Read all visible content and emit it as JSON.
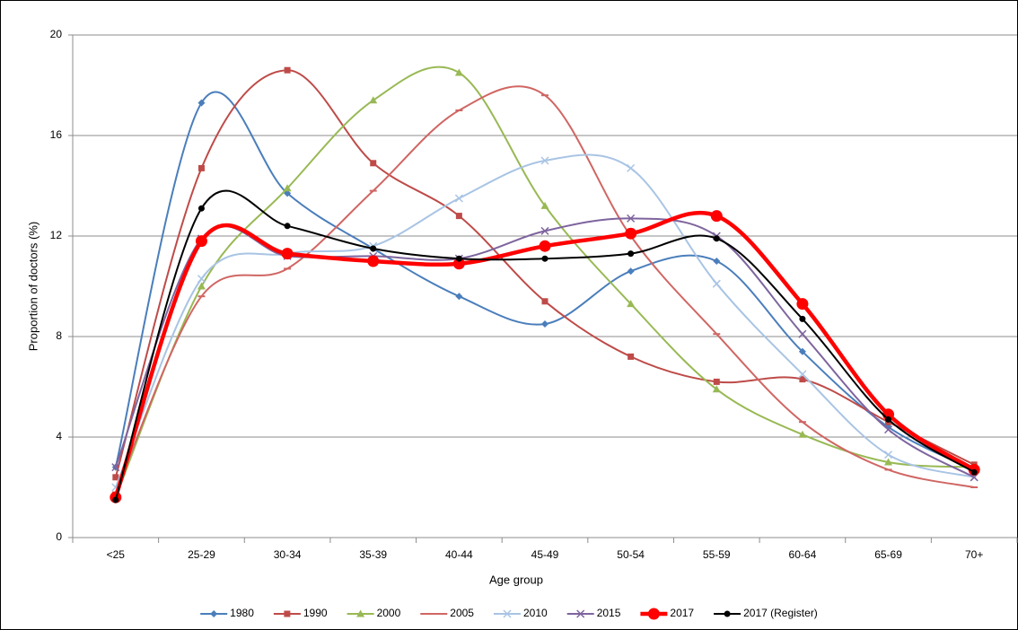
{
  "chart_data": {
    "type": "line",
    "x_label": "Age group",
    "y_label": "Proportion of doctors (%)",
    "categories": [
      "<25",
      "25-29",
      "30-34",
      "35-39",
      "40-44",
      "45-49",
      "50-54",
      "55-59",
      "60-64",
      "65-69",
      "70+"
    ],
    "ylim": [
      0,
      20
    ],
    "yticks": [
      0,
      4,
      8,
      12,
      16,
      20
    ],
    "grid": true,
    "smooth": true,
    "legend": "bottom",
    "series": [
      {
        "name": "1980",
        "color": "#4a7ebb",
        "marker": "diamond",
        "width": 2,
        "values": [
          2.8,
          17.3,
          13.7,
          11.5,
          9.6,
          8.5,
          10.6,
          11.0,
          7.4,
          4.4,
          2.7
        ]
      },
      {
        "name": "1990",
        "color": "#be4b48",
        "marker": "square",
        "width": 2,
        "values": [
          2.4,
          14.7,
          18.6,
          14.9,
          12.8,
          9.4,
          7.2,
          6.2,
          6.3,
          4.6,
          2.9
        ]
      },
      {
        "name": "2000",
        "color": "#98b954",
        "marker": "triangle",
        "width": 2,
        "values": [
          1.6,
          10.0,
          13.9,
          17.4,
          18.5,
          13.2,
          9.3,
          5.9,
          4.1,
          3.0,
          2.8
        ]
      },
      {
        "name": "2005",
        "color": "#d06663",
        "marker": "dash",
        "width": 2,
        "values": [
          1.8,
          9.6,
          10.7,
          13.8,
          17.0,
          17.6,
          12.0,
          8.1,
          4.6,
          2.7,
          2.0
        ]
      },
      {
        "name": "2010",
        "color": "#a9c4e4",
        "marker": "x",
        "width": 2,
        "values": [
          2.0,
          10.3,
          11.3,
          11.6,
          13.5,
          15.0,
          14.7,
          10.1,
          6.5,
          3.3,
          2.4
        ]
      },
      {
        "name": "2015",
        "color": "#7e649e",
        "marker": "x",
        "width": 2,
        "values": [
          2.8,
          11.9,
          11.2,
          11.2,
          11.1,
          12.2,
          12.7,
          12.0,
          8.1,
          4.3,
          2.4
        ]
      },
      {
        "name": "2017",
        "color": "#ff0000",
        "marker": "circle",
        "width": 4.5,
        "values": [
          1.6,
          11.8,
          11.3,
          11.0,
          10.9,
          11.6,
          12.1,
          12.8,
          9.3,
          4.9,
          2.7
        ]
      },
      {
        "name": "2017 (Register)",
        "color": "#000000",
        "marker": "dot",
        "width": 2,
        "values": [
          1.5,
          13.1,
          12.4,
          11.5,
          11.1,
          11.1,
          11.3,
          11.9,
          8.7,
          4.7,
          2.6
        ]
      }
    ]
  }
}
